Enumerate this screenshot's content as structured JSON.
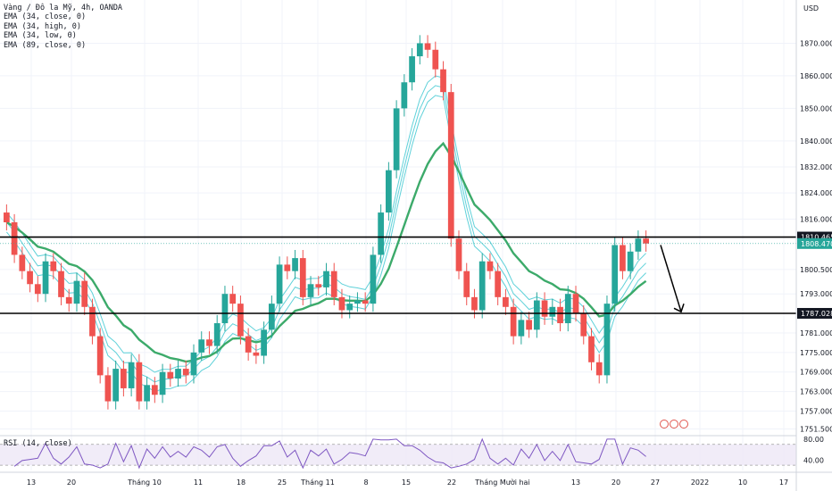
{
  "legend": {
    "title": "Vàng / Đô la Mỹ, 4h, OANDA",
    "items": [
      "EMA (34, close, 0)",
      "EMA (34, high, 0)",
      "EMA (34, low, 0)",
      "EMA (89, close, 0)"
    ]
  },
  "rsi_label": "RSI (14, close)",
  "colors": {
    "up": "#26a69a",
    "down": "#ef5350",
    "ema34": "#5fd1d9",
    "ema89": "#3caa6a",
    "rsi": "#7e57c2",
    "level": "#000000"
  },
  "chart_data": {
    "type": "candlestick",
    "symbol": "Vàng / Đô la Mỹ, 4h, OANDA",
    "currency": "USD",
    "y_ticks": [
      "1870.000",
      "1860.000",
      "1850.000",
      "1840.000",
      "1832.000",
      "1824.000",
      "1816.000",
      "1810.465",
      "1808.470",
      "1800.500",
      "1793.000",
      "1787.028",
      "1781.000",
      "1775.000",
      "1769.000",
      "1763.000",
      "1757.000",
      "1751.500"
    ],
    "ylim": [
      1750,
      1880
    ],
    "x_ticks": [
      "13",
      "20",
      "Tháng 10",
      "11",
      "18",
      "25",
      "Tháng 11",
      "8",
      "15",
      "22",
      "Tháng Mười hai",
      "13",
      "20",
      "27",
      "2022",
      "10",
      "17"
    ],
    "horizontal_levels": [
      1810.465,
      1787.028
    ],
    "last_price": 1808.47,
    "price_closes": [
      1815,
      1805,
      1800,
      1796,
      1793,
      1803,
      1800,
      1792,
      1790,
      1797,
      1789,
      1780,
      1768,
      1760,
      1770,
      1764,
      1772,
      1760,
      1765,
      1762,
      1769,
      1767,
      1770,
      1768,
      1775,
      1779,
      1777,
      1784,
      1793,
      1790,
      1780,
      1775,
      1774,
      1782,
      1790,
      1802,
      1800,
      1804,
      1792,
      1796,
      1795,
      1800,
      1792,
      1788,
      1790,
      1791,
      1790,
      1805,
      1818,
      1831,
      1850,
      1858,
      1866,
      1870,
      1868,
      1862,
      1855,
      1810,
      1800,
      1792,
      1788,
      1803,
      1800,
      1792,
      1789,
      1780,
      1785,
      1782,
      1791,
      1786,
      1789,
      1784,
      1793,
      1787,
      1780,
      1772,
      1768,
      1790,
      1808,
      1800,
      1806,
      1810,
      1808.47
    ],
    "ema_89_close_end": 1793,
    "rsi": {
      "name": "RSI (14, close)",
      "levels": [
        70,
        30
      ],
      "ticks": [
        "80.00",
        "40.00"
      ]
    },
    "annotation": "downward arrow projection from 1808 toward 1787",
    "grid": true
  }
}
